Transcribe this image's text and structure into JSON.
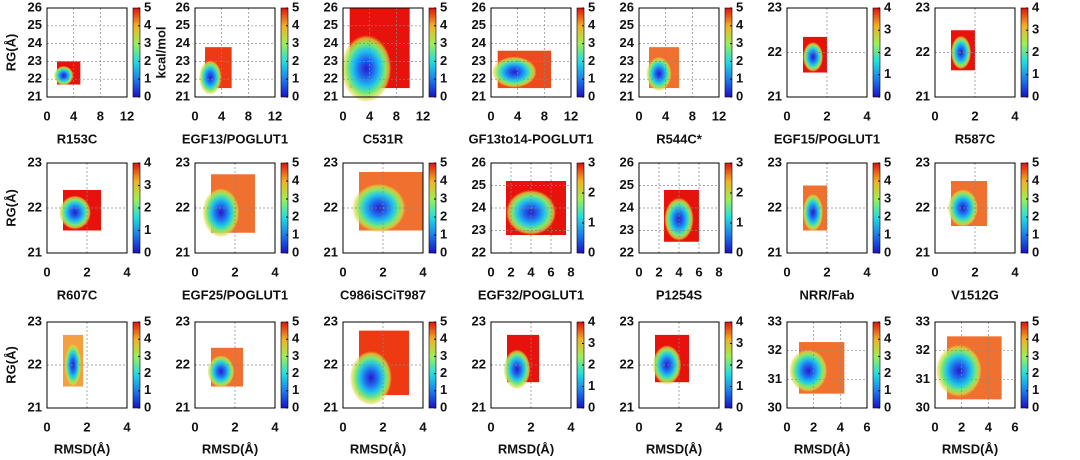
{
  "chart_data": [
    {
      "type": "heatmap",
      "title": "R153C",
      "ylabel": "RG(Å)",
      "clabel": "kcal/mol",
      "xlim": [
        0,
        12
      ],
      "xticks": [
        0,
        4,
        8,
        12
      ],
      "ylim": [
        21,
        26
      ],
      "yticks": [
        21,
        22,
        23,
        24,
        25,
        26
      ],
      "clim": [
        0,
        5
      ],
      "cticks": [
        0,
        1,
        2,
        3,
        4,
        5
      ],
      "color": "#e8120c",
      "map_extent": [
        1.5,
        5,
        21.7,
        23
      ],
      "min": [
        2.5,
        22.2
      ],
      "grid": true
    },
    {
      "type": "heatmap",
      "title": "EGF13/POGLUT1",
      "xlim": [
        0,
        12
      ],
      "xticks": [
        0,
        4,
        8,
        12
      ],
      "ylim": [
        21,
        26
      ],
      "yticks": [
        21,
        22,
        23,
        24,
        25,
        26
      ],
      "clim": [
        0,
        5
      ],
      "cticks": [
        0,
        1,
        2,
        3,
        4,
        5
      ],
      "color": "#ee3a12",
      "map_extent": [
        1.5,
        5.5,
        21.5,
        23.8
      ],
      "min": [
        2.3,
        22.1
      ],
      "grid": true
    },
    {
      "type": "heatmap",
      "title": "C531R",
      "xlim": [
        0,
        12
      ],
      "xticks": [
        0,
        4,
        8,
        12
      ],
      "ylim": [
        21,
        26
      ],
      "yticks": [
        21,
        22,
        23,
        24,
        25,
        26
      ],
      "clim": [
        0,
        5
      ],
      "cticks": [
        0,
        1,
        2,
        3,
        4,
        5
      ],
      "color": "#e8120c",
      "map_extent": [
        1,
        10,
        21.5,
        26
      ],
      "min": [
        3.5,
        22.6
      ],
      "grid": true
    },
    {
      "type": "heatmap",
      "title": "GF13to14-POGLUT1",
      "xlim": [
        0,
        12
      ],
      "xticks": [
        0,
        4,
        8,
        12
      ],
      "ylim": [
        21,
        26
      ],
      "yticks": [
        21,
        22,
        23,
        24,
        25,
        26
      ],
      "clim": [
        0,
        5
      ],
      "cticks": [
        0,
        1,
        2,
        3,
        4,
        5
      ],
      "color": "#ee4a1c",
      "map_extent": [
        1,
        9,
        21.5,
        23.6
      ],
      "min": [
        3.5,
        22.4
      ],
      "grid": true
    },
    {
      "type": "heatmap",
      "title": "R544C*",
      "xlim": [
        0,
        12
      ],
      "xticks": [
        0,
        4,
        8,
        12
      ],
      "ylim": [
        21,
        26
      ],
      "yticks": [
        21,
        22,
        23,
        24,
        25,
        26
      ],
      "clim": [
        0,
        5
      ],
      "cticks": [
        0,
        1,
        2,
        3,
        4,
        5
      ],
      "color": "#f07030",
      "map_extent": [
        1.5,
        6,
        21.5,
        23.8
      ],
      "min": [
        3,
        22.3
      ],
      "grid": true
    },
    {
      "type": "heatmap",
      "title": "EGF15/POGLUT1",
      "xlim": [
        0,
        4
      ],
      "xticks": [
        0,
        2,
        4
      ],
      "ylim": [
        21,
        23
      ],
      "yticks": [
        21,
        22,
        23
      ],
      "clim": [
        0,
        4
      ],
      "cticks": [
        0,
        1,
        2,
        3,
        4
      ],
      "color": "#e8120c",
      "map_extent": [
        0.8,
        2,
        21.55,
        22.35
      ],
      "min": [
        1.3,
        21.9
      ],
      "grid": true
    },
    {
      "type": "heatmap",
      "title": "R587C",
      "xlim": [
        0,
        4
      ],
      "xticks": [
        0,
        2,
        4
      ],
      "ylim": [
        21,
        23
      ],
      "yticks": [
        21,
        22,
        23
      ],
      "clim": [
        0,
        4
      ],
      "cticks": [
        0,
        1,
        2,
        3,
        4
      ],
      "color": "#e8120c",
      "map_extent": [
        0.8,
        2,
        21.6,
        22.5
      ],
      "min": [
        1.3,
        22
      ],
      "grid": true
    },
    {
      "type": "heatmap",
      "title": "R607C",
      "ylabel": "RG(Å)",
      "xlim": [
        0,
        4
      ],
      "xticks": [
        0,
        2,
        4
      ],
      "ylim": [
        21,
        23
      ],
      "yticks": [
        21,
        22,
        23
      ],
      "clim": [
        0,
        4
      ],
      "cticks": [
        0,
        1,
        2,
        3,
        4
      ],
      "color": "#e8120c",
      "map_extent": [
        0.8,
        2.7,
        21.5,
        22.4
      ],
      "min": [
        1.4,
        21.9
      ],
      "grid": true
    },
    {
      "type": "heatmap",
      "title": "EGF25/POGLUT1",
      "xlim": [
        0,
        4
      ],
      "xticks": [
        0,
        2,
        4
      ],
      "ylim": [
        21,
        23
      ],
      "yticks": [
        21,
        22,
        23
      ],
      "clim": [
        0,
        5
      ],
      "cticks": [
        0,
        1,
        2,
        3,
        4,
        5
      ],
      "color": "#f07030",
      "map_extent": [
        0.8,
        3,
        21.45,
        22.75
      ],
      "min": [
        1.3,
        21.9
      ],
      "grid": true
    },
    {
      "type": "heatmap",
      "title": "C986iSCiT987",
      "xlim": [
        0,
        4
      ],
      "xticks": [
        0,
        2,
        4
      ],
      "ylim": [
        21,
        23
      ],
      "yticks": [
        21,
        22,
        23
      ],
      "clim": [
        0,
        5
      ],
      "cticks": [
        0,
        1,
        2,
        3,
        4,
        5
      ],
      "color": "#f07030",
      "map_extent": [
        0.8,
        4,
        21.5,
        22.8
      ],
      "min": [
        1.8,
        22
      ],
      "grid": true
    },
    {
      "type": "heatmap",
      "title": "EGF32/POGLUT1",
      "xlim": [
        0,
        8
      ],
      "xticks": [
        0,
        2,
        4,
        6,
        8
      ],
      "ylim": [
        22,
        26
      ],
      "yticks": [
        22,
        23,
        24,
        25,
        26
      ],
      "clim": [
        0,
        3
      ],
      "cticks": [
        0,
        1,
        2,
        3
      ],
      "color": "#e8120c",
      "map_extent": [
        1.5,
        7.5,
        22.8,
        25.2
      ],
      "min": [
        4,
        23.8
      ],
      "grid": true
    },
    {
      "type": "heatmap",
      "title": "P1254S",
      "xlim": [
        0,
        8
      ],
      "xticks": [
        0,
        2,
        4,
        6,
        8
      ],
      "ylim": [
        22,
        26
      ],
      "yticks": [
        22,
        23,
        24,
        25,
        26
      ],
      "clim": [
        0,
        3
      ],
      "cticks": [
        0,
        1,
        2,
        3
      ],
      "color": "#e8120c",
      "map_extent": [
        2.5,
        6,
        22.5,
        24.8
      ],
      "min": [
        4,
        23.5
      ],
      "grid": true
    },
    {
      "type": "heatmap",
      "title": "NRR/Fab",
      "xlim": [
        0,
        4
      ],
      "xticks": [
        0,
        2,
        4
      ],
      "ylim": [
        21,
        23
      ],
      "yticks": [
        21,
        22,
        23
      ],
      "clim": [
        0,
        5
      ],
      "cticks": [
        0,
        1,
        2,
        3,
        4,
        5
      ],
      "color": "#f07030",
      "map_extent": [
        0.8,
        2,
        21.5,
        22.5
      ],
      "min": [
        1.3,
        21.9
      ],
      "grid": true
    },
    {
      "type": "heatmap",
      "title": "V1512G",
      "xlim": [
        0,
        4
      ],
      "xticks": [
        0,
        2,
        4
      ],
      "ylim": [
        21,
        23
      ],
      "yticks": [
        21,
        22,
        23
      ],
      "clim": [
        0,
        5
      ],
      "cticks": [
        0,
        1,
        2,
        3,
        4,
        5
      ],
      "color": "#f07030",
      "map_extent": [
        0.8,
        2.6,
        21.6,
        22.6
      ],
      "min": [
        1.4,
        22
      ],
      "grid": true
    },
    {
      "type": "heatmap",
      "xlabel": "RMSD(Å)",
      "ylabel": "RG(Å)",
      "xlim": [
        0,
        4
      ],
      "xticks": [
        0,
        2,
        4
      ],
      "ylim": [
        21,
        23
      ],
      "yticks": [
        21,
        22,
        23
      ],
      "clim": [
        0,
        5
      ],
      "cticks": [
        0,
        1,
        2,
        3,
        4,
        5
      ],
      "color": "#f5a040",
      "map_extent": [
        0.8,
        1.8,
        21.5,
        22.7
      ],
      "min": [
        1.3,
        22
      ],
      "grid": true
    },
    {
      "type": "heatmap",
      "xlabel": "RMSD(Å)",
      "xlim": [
        0,
        4
      ],
      "xticks": [
        0,
        2,
        4
      ],
      "ylim": [
        21,
        23
      ],
      "yticks": [
        21,
        22,
        23
      ],
      "clim": [
        0,
        5
      ],
      "cticks": [
        0,
        1,
        2,
        3,
        4,
        5
      ],
      "color": "#f07030",
      "map_extent": [
        0.8,
        2.4,
        21.5,
        22.4
      ],
      "min": [
        1.3,
        21.85
      ],
      "grid": true
    },
    {
      "type": "heatmap",
      "xlabel": "RMSD(Å)",
      "xlim": [
        0,
        4
      ],
      "xticks": [
        0,
        2,
        4
      ],
      "ylim": [
        21,
        23
      ],
      "yticks": [
        21,
        22,
        23
      ],
      "clim": [
        0,
        5
      ],
      "cticks": [
        0,
        1,
        2,
        3,
        4,
        5
      ],
      "color": "#ee3a12",
      "map_extent": [
        0.8,
        3.3,
        21.3,
        22.8
      ],
      "min": [
        1.4,
        21.7
      ],
      "grid": true
    },
    {
      "type": "heatmap",
      "xlabel": "RMSD(Å)",
      "xlim": [
        0,
        4
      ],
      "xticks": [
        0,
        2,
        4
      ],
      "ylim": [
        21,
        23
      ],
      "yticks": [
        21,
        22,
        23
      ],
      "clim": [
        0,
        4
      ],
      "cticks": [
        0,
        1,
        2,
        3,
        4
      ],
      "color": "#e8120c",
      "map_extent": [
        0.8,
        2.4,
        21.6,
        22.7
      ],
      "min": [
        1.3,
        21.9
      ],
      "grid": true
    },
    {
      "type": "heatmap",
      "xlabel": "RMSD(Å)",
      "xlim": [
        0,
        4
      ],
      "xticks": [
        0,
        2,
        4
      ],
      "ylim": [
        21,
        23
      ],
      "yticks": [
        21,
        22,
        23
      ],
      "clim": [
        0,
        4
      ],
      "cticks": [
        0,
        1,
        2,
        3,
        4
      ],
      "color": "#e8120c",
      "map_extent": [
        0.8,
        2.5,
        21.6,
        22.7
      ],
      "min": [
        1.4,
        22
      ],
      "grid": true
    },
    {
      "type": "heatmap",
      "xlabel": "RMSD(Å)",
      "xlim": [
        0,
        6
      ],
      "xticks": [
        0,
        2,
        4,
        6
      ],
      "ylim": [
        30,
        33
      ],
      "yticks": [
        30,
        31,
        32,
        33
      ],
      "clim": [
        0,
        5
      ],
      "cticks": [
        0,
        1,
        2,
        3,
        4,
        5
      ],
      "color": "#f07030",
      "map_extent": [
        0.9,
        4.3,
        30.5,
        32.3
      ],
      "min": [
        1.6,
        31.3
      ],
      "grid": true
    },
    {
      "type": "heatmap",
      "xlabel": "RMSD(Å)",
      "xlim": [
        0,
        6
      ],
      "xticks": [
        0,
        2,
        4,
        6
      ],
      "ylim": [
        30,
        33
      ],
      "yticks": [
        30,
        31,
        32,
        33
      ],
      "clim": [
        0,
        5
      ],
      "cticks": [
        0,
        1,
        2,
        3,
        4,
        5
      ],
      "color": "#f07030",
      "map_extent": [
        0.9,
        5,
        30.3,
        32.5
      ],
      "min": [
        1.8,
        31.3
      ],
      "grid": true
    }
  ]
}
